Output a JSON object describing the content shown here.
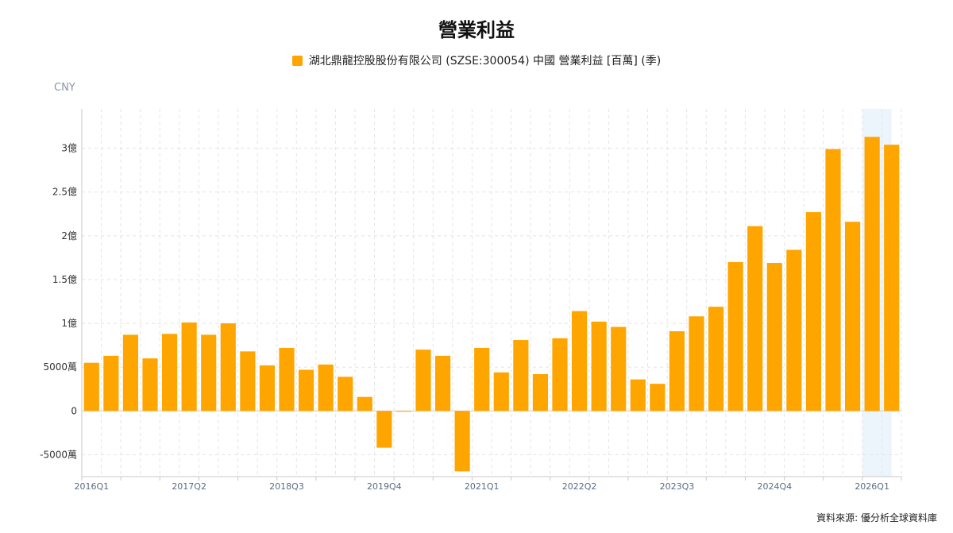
{
  "chart_data": {
    "type": "bar",
    "title": "營業利益",
    "unit_label": "CNY",
    "source": "資料來源: 優分析全球資料庫",
    "series": [
      {
        "name": "湖北鼎龍控股股份有限公司 (SZSE:300054) 中國 營業利益 [百萬] (季)",
        "color": "#FFA500",
        "values": [
          55,
          63,
          87,
          60,
          88,
          101,
          87,
          100,
          68,
          52,
          72,
          47,
          53,
          39,
          16,
          -42,
          0,
          70,
          63,
          -69,
          72,
          44,
          81,
          42,
          83,
          114,
          102,
          96,
          36,
          31,
          91,
          108,
          119,
          170,
          211,
          169,
          184,
          227,
          299,
          216,
          313,
          304
        ]
      }
    ],
    "categories": [
      "2016Q1",
      "2016Q2",
      "2016Q3",
      "2016Q4",
      "2017Q1",
      "2017Q2",
      "2017Q3",
      "2017Q4",
      "2018Q1",
      "2018Q2",
      "2018Q3",
      "2018Q4",
      "2019Q1",
      "2019Q2",
      "2019Q3",
      "2019Q4",
      "2020Q1",
      "2020Q2",
      "2020Q3",
      "2020Q4",
      "2021Q1",
      "2021Q2",
      "2021Q3",
      "2021Q4",
      "2022Q1",
      "2022Q2",
      "2022Q3",
      "2022Q4",
      "2023Q1",
      "2023Q2",
      "2023Q3",
      "2023Q4",
      "2024Q1",
      "2024Q2",
      "2024Q3",
      "2024Q4",
      "2025Q1",
      "2025Q2",
      "2025Q3",
      "2025Q4",
      "2026Q1",
      "2026Q2"
    ],
    "x_tick_labels": [
      "2016Q1",
      "2017Q2",
      "2018Q3",
      "2019Q4",
      "2021Q1",
      "2022Q2",
      "2023Q3",
      "2024Q4",
      "2026Q1"
    ],
    "y_ticks": [
      {
        "value": -50,
        "label": "-5000萬"
      },
      {
        "value": 0,
        "label": "0"
      },
      {
        "value": 50,
        "label": "5000萬"
      },
      {
        "value": 100,
        "label": "1億"
      },
      {
        "value": 150,
        "label": "1.5億"
      },
      {
        "value": 200,
        "label": "2億"
      },
      {
        "value": 250,
        "label": "2.5億"
      },
      {
        "value": 300,
        "label": "3億"
      }
    ],
    "ylim": [
      -75,
      345
    ],
    "grid": true,
    "highlight_categories": [
      "2026Q1",
      "2026Q2"
    ],
    "legend_position": "top-center"
  }
}
